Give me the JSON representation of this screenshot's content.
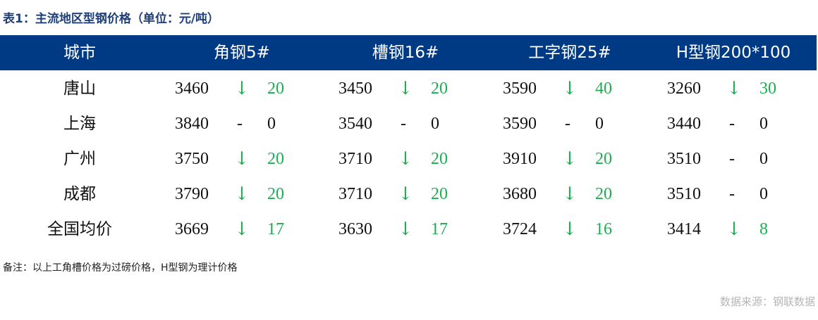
{
  "title": "表1：主流地区型钢价格（单位：元/吨）",
  "colors": {
    "header_bg": "#003a84",
    "down": "#1aae4f",
    "flat": "#111111"
  },
  "headers": [
    "城市",
    "角钢5#",
    "槽钢16#",
    "工字钢25#",
    "H型钢200*100"
  ],
  "rows": [
    {
      "city": "唐山",
      "cells": [
        {
          "price": "3460",
          "dir": "↓",
          "change": "20"
        },
        {
          "price": "3450",
          "dir": "↓",
          "change": "20"
        },
        {
          "price": "3590",
          "dir": "↓",
          "change": "40"
        },
        {
          "price": "3260",
          "dir": "↓",
          "change": "30"
        }
      ]
    },
    {
      "city": "上海",
      "cells": [
        {
          "price": "3840",
          "dir": "-",
          "change": "0"
        },
        {
          "price": "3540",
          "dir": "-",
          "change": "0"
        },
        {
          "price": "3590",
          "dir": "-",
          "change": "0"
        },
        {
          "price": "3440",
          "dir": "-",
          "change": "0"
        }
      ]
    },
    {
      "city": "广州",
      "cells": [
        {
          "price": "3750",
          "dir": "↓",
          "change": "20"
        },
        {
          "price": "3710",
          "dir": "↓",
          "change": "20"
        },
        {
          "price": "3910",
          "dir": "↓",
          "change": "20"
        },
        {
          "price": "3510",
          "dir": "-",
          "change": "0"
        }
      ]
    },
    {
      "city": "成都",
      "cells": [
        {
          "price": "3790",
          "dir": "↓",
          "change": "20"
        },
        {
          "price": "3710",
          "dir": "↓",
          "change": "20"
        },
        {
          "price": "3680",
          "dir": "↓",
          "change": "20"
        },
        {
          "price": "3510",
          "dir": "-",
          "change": "0"
        }
      ]
    },
    {
      "city": "全国均价",
      "cells": [
        {
          "price": "3669",
          "dir": "↓",
          "change": "17"
        },
        {
          "price": "3630",
          "dir": "↓",
          "change": "17"
        },
        {
          "price": "3724",
          "dir": "↓",
          "change": "16"
        },
        {
          "price": "3414",
          "dir": "↓",
          "change": "8"
        }
      ]
    }
  ],
  "note": "备注：以上工角槽价格为过磅价格，H型钢为理计价格",
  "source": "数据来源：钢联数据"
}
